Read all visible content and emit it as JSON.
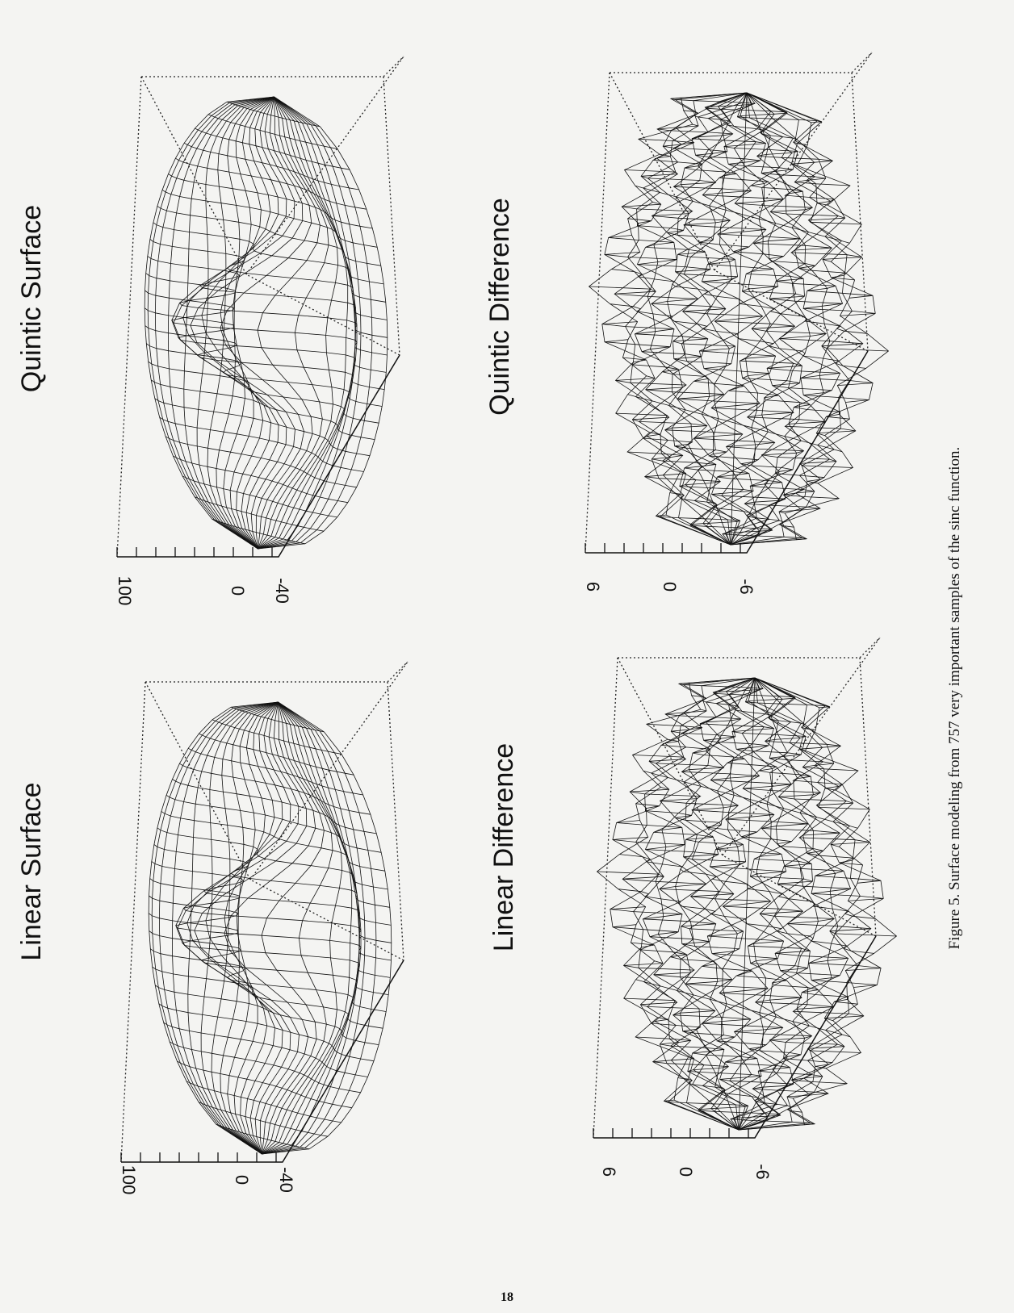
{
  "panels": [
    {
      "title": "Linear Surface",
      "zticks": [
        "100",
        "0",
        "-40"
      ]
    },
    {
      "title": "Quintic Surface",
      "zticks": [
        "100",
        "0",
        "-40"
      ]
    },
    {
      "title": "Linear Difference",
      "zticks": [
        "6",
        "0",
        "-6"
      ]
    },
    {
      "title": "Quintic Difference",
      "zticks": [
        "6",
        "0",
        "-6"
      ]
    }
  ],
  "caption": "Figure 5. Surface modeling from 757 very important samples of the sinc function.",
  "page_number": "18"
}
